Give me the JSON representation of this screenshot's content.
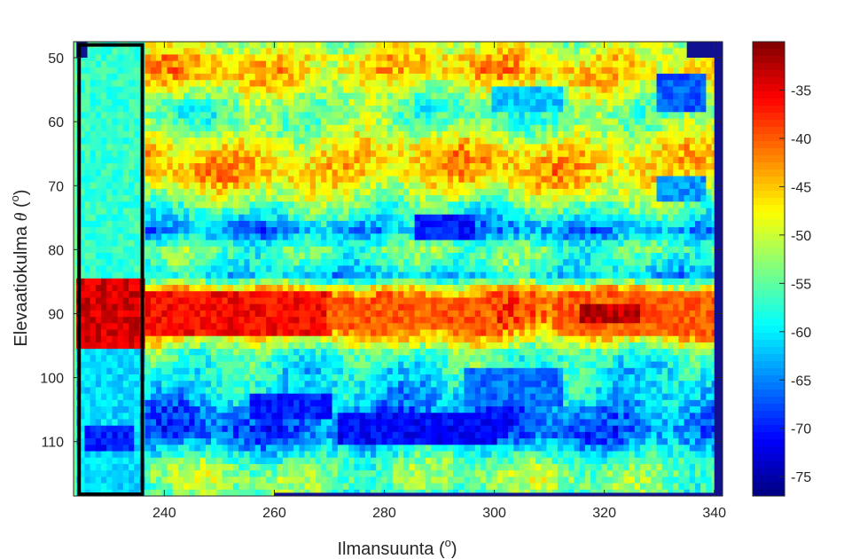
{
  "chart_data": {
    "type": "heatmap",
    "title": "",
    "xlabel": {
      "text": "Ilmansuunta (",
      "sup": "o",
      "close": ")"
    },
    "ylabel": {
      "text": "Elevaatiokulma ",
      "symbol": "θ",
      "open": " (",
      "sup": "o",
      "close": ")"
    },
    "xlim": [
      223.5,
      341.5
    ],
    "ylim": [
      118.5,
      47.5
    ],
    "y_reversed": true,
    "x_ticks": [
      240,
      260,
      280,
      300,
      320,
      340
    ],
    "x_tick_labels": [
      "240",
      "260",
      "280",
      "300",
      "320",
      "340"
    ],
    "y_ticks": [
      50,
      60,
      70,
      80,
      90,
      100,
      110
    ],
    "y_tick_labels": [
      "50",
      "60",
      "70",
      "80",
      "90",
      "100",
      "110"
    ],
    "colorbar": {
      "colormap": "jet",
      "clim": [
        -77,
        -30
      ],
      "ticks": [
        -35,
        -40,
        -45,
        -50,
        -55,
        -60,
        -65,
        -70,
        -75
      ],
      "tick_labels": [
        "-35",
        "-40",
        "-45",
        "-50",
        "-55",
        "-60",
        "-65",
        "-70",
        "-75"
      ]
    },
    "highlight_rect": {
      "x0": 224.5,
      "x1": 236,
      "y0": 48,
      "y1": 118.5,
      "color": "#000000"
    },
    "x_step": 1,
    "y_step": 1,
    "row_base": [
      [
        48,
        -50
      ],
      [
        49,
        -49
      ],
      [
        50,
        -46
      ],
      [
        51,
        -46
      ],
      [
        52,
        -45
      ],
      [
        53,
        -46
      ],
      [
        54,
        -48
      ],
      [
        55,
        -50
      ],
      [
        56,
        -52
      ],
      [
        57,
        -54
      ],
      [
        58,
        -55
      ],
      [
        59,
        -55
      ],
      [
        60,
        -54
      ],
      [
        61,
        -53
      ],
      [
        62,
        -51
      ],
      [
        63,
        -49
      ],
      [
        64,
        -47
      ],
      [
        65,
        -46
      ],
      [
        66,
        -45
      ],
      [
        67,
        -45
      ],
      [
        68,
        -45
      ],
      [
        69,
        -46
      ],
      [
        70,
        -48
      ],
      [
        71,
        -50
      ],
      [
        72,
        -52
      ],
      [
        73,
        -55
      ],
      [
        74,
        -57
      ],
      [
        75,
        -59
      ],
      [
        76,
        -62
      ],
      [
        77,
        -64
      ],
      [
        78,
        -61
      ],
      [
        79,
        -57
      ],
      [
        80,
        -55
      ],
      [
        81,
        -56
      ],
      [
        82,
        -57
      ],
      [
        83,
        -59
      ],
      [
        84,
        -61
      ],
      [
        85,
        -55
      ],
      [
        86,
        -47
      ],
      [
        87,
        -42
      ],
      [
        88,
        -40
      ],
      [
        89,
        -39
      ],
      [
        90,
        -38
      ],
      [
        91,
        -38
      ],
      [
        92,
        -40
      ],
      [
        93,
        -43
      ],
      [
        94,
        -47
      ],
      [
        95,
        -51
      ],
      [
        96,
        -55
      ],
      [
        97,
        -57
      ],
      [
        98,
        -58
      ],
      [
        99,
        -59
      ],
      [
        100,
        -59
      ],
      [
        101,
        -60
      ],
      [
        102,
        -61
      ],
      [
        103,
        -62
      ],
      [
        104,
        -63
      ],
      [
        105,
        -65
      ],
      [
        106,
        -66
      ],
      [
        107,
        -66
      ],
      [
        108,
        -67
      ],
      [
        109,
        -66
      ],
      [
        110,
        -64
      ],
      [
        111,
        -61
      ],
      [
        112,
        -58
      ],
      [
        113,
        -56
      ],
      [
        114,
        -54
      ],
      [
        115,
        -53
      ],
      [
        116,
        -53
      ],
      [
        117,
        -54
      ],
      [
        118,
        -55
      ]
    ],
    "features": [
      {
        "x0": 224,
        "x1": 236,
        "y0": 85,
        "y1": 95,
        "v": -34
      },
      {
        "x0": 236,
        "x1": 270,
        "y0": 87,
        "y1": 93,
        "v": -36
      },
      {
        "x0": 270,
        "x1": 300,
        "y0": 88,
        "y1": 92,
        "v": -40
      },
      {
        "x0": 312,
        "x1": 340,
        "y0": 87,
        "y1": 93,
        "v": -40
      },
      {
        "x0": 316,
        "x1": 326,
        "y0": 89,
        "y1": 91,
        "v": -33
      },
      {
        "x0": 224,
        "x1": 236,
        "y0": 48,
        "y1": 84,
        "v": -57
      },
      {
        "x0": 224,
        "x1": 236,
        "y0": 96,
        "y1": 118,
        "v": -61
      },
      {
        "x0": 226,
        "x1": 234,
        "y0": 108,
        "y1": 111,
        "v": -70
      },
      {
        "x0": 256,
        "x1": 270,
        "y0": 103,
        "y1": 106,
        "v": -70
      },
      {
        "x0": 272,
        "x1": 300,
        "y0": 106,
        "y1": 110,
        "v": -71
      },
      {
        "x0": 286,
        "x1": 296,
        "y0": 75,
        "y1": 78,
        "v": -70
      },
      {
        "x0": 295,
        "x1": 312,
        "y0": 99,
        "y1": 104,
        "v": -66
      },
      {
        "x0": 330,
        "x1": 338,
        "y0": 53,
        "y1": 58,
        "v": -67
      },
      {
        "x0": 330,
        "x1": 338,
        "y0": 69,
        "y1": 72,
        "v": -64
      },
      {
        "x0": 300,
        "x1": 312,
        "y0": 55,
        "y1": 58,
        "v": -62
      }
    ],
    "outside_color": "#101090",
    "outside_cells": [
      {
        "x0": 224,
        "x1": 226,
        "y0": 47.5,
        "y1": 50
      },
      {
        "x0": 335,
        "x1": 341.5,
        "y0": 47.5,
        "y1": 50
      },
      {
        "x0": 340,
        "x1": 341.5,
        "y0": 47.5,
        "y1": 118.5
      },
      {
        "x0": 260,
        "x1": 341.5,
        "y0": 118,
        "y1": 118.5
      }
    ],
    "green_edge": {
      "x0": 223.5,
      "x1": 224,
      "y0": 47.5,
      "y1": 118.5,
      "color": "#80ff80"
    }
  }
}
